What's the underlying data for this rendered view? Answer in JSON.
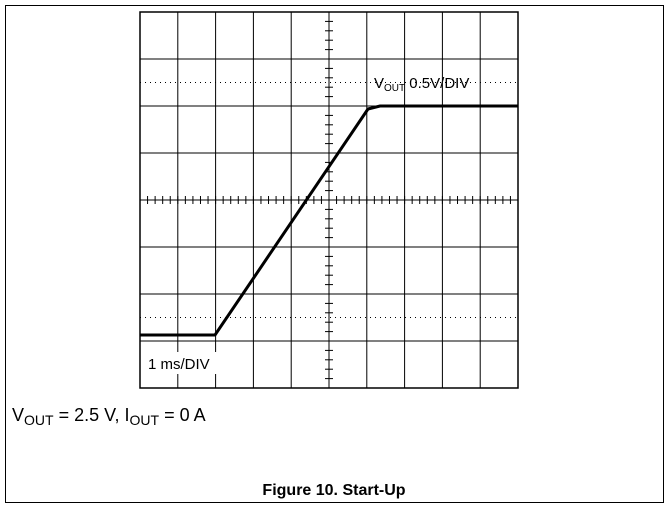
{
  "trace_label": {
    "symbol": "V",
    "subscript": "OUT",
    "rest": " 0.5V/DIV"
  },
  "time_label": "1 ms/DIV",
  "conditions": {
    "v_symbol": "V",
    "v_subscript": "OUT",
    "v_rest": " = 2.5 V, ",
    "i_symbol": "I",
    "i_subscript": "OUT",
    "i_rest": " = 0 A"
  },
  "caption": "Figure 10. Start-Up"
}
